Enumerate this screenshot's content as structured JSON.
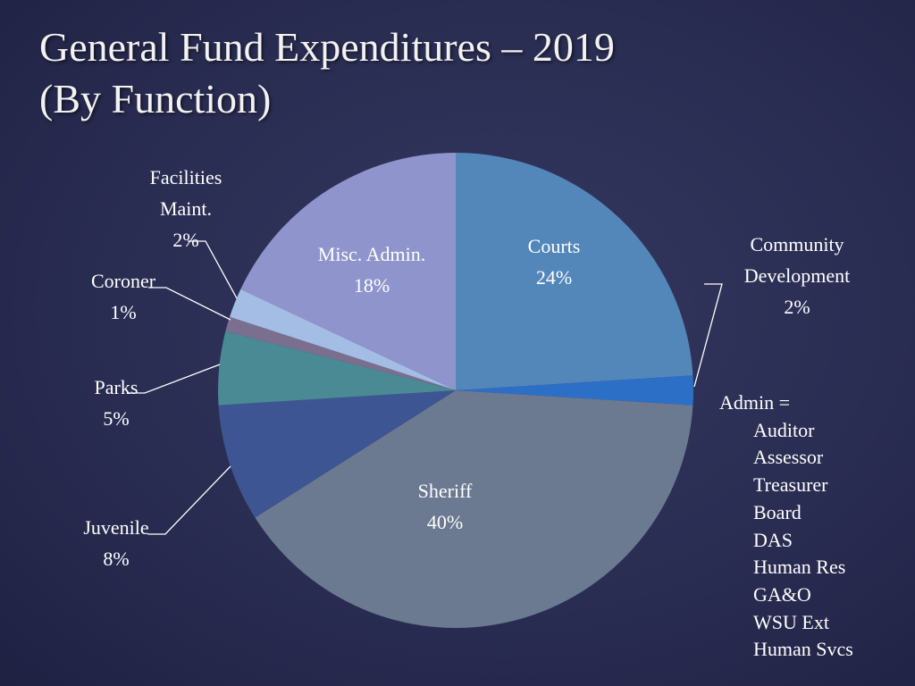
{
  "chart_data": {
    "type": "pie",
    "title": "General Fund Expenditures – 2019",
    "subtitle": "(By Function)",
    "categories": [
      "Courts",
      "Community Development",
      "Sheriff",
      "Juvenile",
      "Parks",
      "Coroner",
      "Facilities Maint.",
      "Misc. Admin."
    ],
    "values": [
      24,
      2,
      40,
      8,
      5,
      1,
      2,
      18
    ],
    "value_labels": [
      "24%",
      "2%",
      "40%",
      "8%",
      "5%",
      "1%",
      "2%",
      "18%"
    ],
    "colors": [
      "#5387ba",
      "#2b70c6",
      "#6b7991",
      "#3e5593",
      "#4a8a95",
      "#7b6f90",
      "#a3bde4",
      "#8f95cc"
    ],
    "annotation": {
      "title": "Admin =",
      "items": [
        "Auditor",
        "Assessor",
        "Treasurer",
        "Board",
        "DAS",
        "Human Res",
        "GA&O",
        "WSU Ext",
        "Human Svcs"
      ]
    }
  }
}
